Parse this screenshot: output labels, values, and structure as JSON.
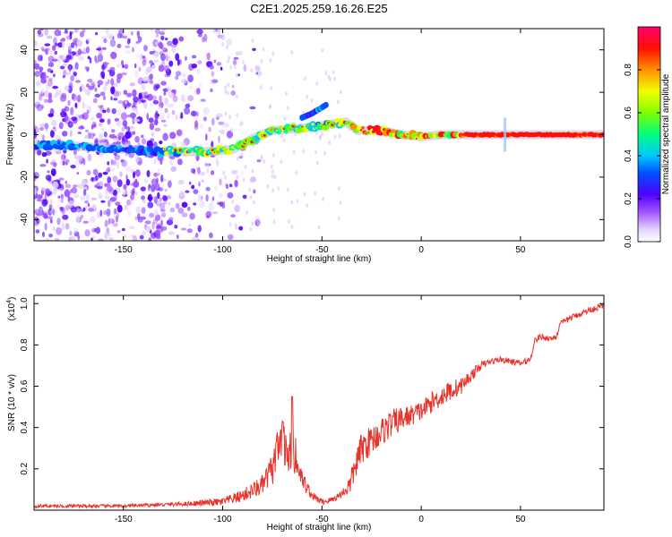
{
  "page": {
    "title": "C2E1.2025.259.16.26.E25"
  },
  "colors": {
    "snr_line": "#e8322a",
    "axis": "#000000",
    "colormap": [
      "#ffffff",
      "#d8c8f8",
      "#a070f0",
      "#7000e0",
      "#0000ff",
      "#00c8ff",
      "#00ff66",
      "#f0ff00",
      "#ff8800",
      "#ff0000",
      "#ff0066"
    ]
  },
  "chart_data": [
    {
      "type": "heatmap",
      "xlabel": "Height of straight line (km)",
      "ylabel": "Frequency (Hz)",
      "xlim": [
        -195,
        92
      ],
      "ylim": [
        -50,
        50
      ],
      "xticks": [
        -150,
        -100,
        -50,
        0,
        50
      ],
      "xtick_labels": [
        "-150",
        "-100",
        "-50",
        "0",
        "50"
      ],
      "yticks": [
        -40,
        -20,
        0,
        20,
        40
      ],
      "ytick_labels": [
        "-40",
        "-20",
        "0",
        "20",
        "40"
      ],
      "colorbar": {
        "label": "Normalized spectral amplitude",
        "range": [
          0,
          1
        ],
        "ticks": [
          0.0,
          0.2,
          0.4,
          0.6,
          0.8
        ],
        "tick_labels": [
          "0.0",
          "0.2",
          "0.4",
          "0.6",
          "0.8"
        ]
      },
      "ridge": {
        "description_points": [
          [
            -195,
            -5
          ],
          [
            -180,
            -5
          ],
          [
            -130,
            -8
          ],
          [
            -110,
            -8
          ],
          [
            -95,
            -7
          ],
          [
            -85,
            -2
          ],
          [
            -75,
            2
          ],
          [
            -60,
            3
          ],
          [
            -45,
            5
          ],
          [
            -38,
            6
          ],
          [
            -32,
            2
          ],
          [
            -20,
            2
          ],
          [
            -10,
            0
          ],
          [
            0,
            -1
          ],
          [
            10,
            0
          ],
          [
            20,
            0
          ],
          [
            50,
            0
          ],
          [
            92,
            0
          ]
        ],
        "secondary_branch": [
          [
            -60,
            8
          ],
          [
            -55,
            10
          ],
          [
            -48,
            14
          ]
        ]
      },
      "noise_region_x": [
        -195,
        -100
      ]
    },
    {
      "type": "line",
      "xlabel": "Height of straight line (km)",
      "ylabel": "SNR (10 * v/v)",
      "y_multiplier_label": "(x10",
      "y_multiplier_exp": "4",
      "y_multiplier_close": ")",
      "xlim": [
        -195,
        92
      ],
      "ylim": [
        0,
        1.04
      ],
      "xticks": [
        -150,
        -100,
        -50,
        0,
        50
      ],
      "xtick_labels": [
        "-150",
        "-100",
        "-50",
        "0",
        "50"
      ],
      "yticks": [
        0.2,
        0.4,
        0.6,
        0.8,
        1.0
      ],
      "ytick_labels": [
        "0.2",
        "0.4",
        "0.6",
        "0.8",
        "1.0"
      ],
      "series": [
        {
          "values_note": "approximate envelope (x, mean SNR, noise amplitude)",
          "x": [
            -195,
            -150,
            -120,
            -100,
            -90,
            -80,
            -75,
            -72,
            -70,
            -68,
            -65,
            -60,
            -55,
            -50,
            -45,
            -40,
            -36,
            -33,
            -30,
            -25,
            -20,
            -15,
            -10,
            -5,
            0,
            5,
            10,
            15,
            20,
            25,
            30,
            35,
            40,
            45,
            50,
            55,
            57,
            60,
            65,
            68,
            70,
            75,
            80,
            85,
            92
          ],
          "y": [
            0.02,
            0.02,
            0.03,
            0.04,
            0.07,
            0.12,
            0.2,
            0.28,
            0.33,
            0.3,
            0.25,
            0.15,
            0.07,
            0.04,
            0.05,
            0.08,
            0.12,
            0.22,
            0.3,
            0.34,
            0.38,
            0.42,
            0.44,
            0.46,
            0.48,
            0.52,
            0.55,
            0.58,
            0.6,
            0.65,
            0.7,
            0.72,
            0.73,
            0.72,
            0.71,
            0.73,
            0.82,
            0.84,
            0.83,
            0.84,
            0.9,
            0.93,
            0.95,
            0.97,
            0.99
          ],
          "noise": [
            0.008,
            0.008,
            0.01,
            0.02,
            0.03,
            0.05,
            0.08,
            0.12,
            0.12,
            0.1,
            0.08,
            0.05,
            0.02,
            0.015,
            0.015,
            0.02,
            0.05,
            0.07,
            0.08,
            0.07,
            0.07,
            0.07,
            0.06,
            0.05,
            0.05,
            0.05,
            0.05,
            0.05,
            0.04,
            0.03,
            0.02,
            0.015,
            0.015,
            0.015,
            0.015,
            0.015,
            0.015,
            0.015,
            0.015,
            0.015,
            0.015,
            0.015,
            0.015,
            0.015,
            0.015
          ],
          "peak_spike": {
            "x": -65,
            "y": 0.55
          }
        }
      ]
    }
  ]
}
